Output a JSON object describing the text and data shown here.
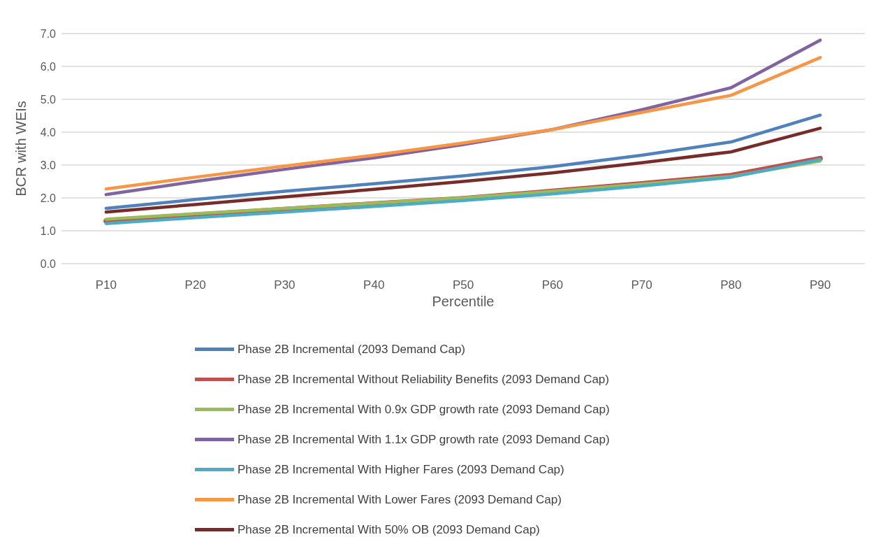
{
  "chart_data": {
    "type": "line",
    "xlabel": "Percentile",
    "ylabel": "BCR with WEIs",
    "categories": [
      "P10",
      "P20",
      "P30",
      "P40",
      "P50",
      "P60",
      "P70",
      "P80",
      "P90"
    ],
    "series": [
      {
        "name": "Phase 2B Incremental (2093 Demand Cap)",
        "color": "#4f81bd",
        "values": [
          1.68,
          1.95,
          2.2,
          2.43,
          2.67,
          2.95,
          3.3,
          3.7,
          4.52
        ]
      },
      {
        "name": "Phase 2B Incremental Without Reliability Benefits (2093 Demand Cap)",
        "color": "#c0504d",
        "values": [
          1.3,
          1.48,
          1.65,
          1.82,
          1.98,
          2.2,
          2.43,
          2.68,
          3.2
        ]
      },
      {
        "name": "Phase 2B Incremental With 0.9x GDP growth rate (2093 Demand Cap)",
        "color": "#9bbb59",
        "values": [
          1.35,
          1.52,
          1.68,
          1.84,
          2.0,
          2.2,
          2.42,
          2.65,
          3.12
        ]
      },
      {
        "name": "Phase 2B Incremental With 1.1x GDP growth rate (2093 Demand Cap)",
        "color": "#8064a2",
        "values": [
          2.1,
          2.5,
          2.87,
          3.22,
          3.62,
          4.08,
          4.68,
          5.35,
          6.8
        ]
      },
      {
        "name": "Phase 2B Incremental With Higher Fares (2093 Demand Cap)",
        "color": "#4bacc6",
        "values": [
          1.22,
          1.4,
          1.57,
          1.74,
          1.92,
          2.12,
          2.36,
          2.63,
          3.17
        ]
      },
      {
        "name": "Phase 2B Incremental With Lower Fares (2093 Demand Cap)",
        "color": "#f79646",
        "values": [
          2.27,
          2.63,
          2.97,
          3.3,
          3.67,
          4.08,
          4.6,
          5.12,
          6.27
        ]
      },
      {
        "name": "Phase 2B Incremental With 50% OB (2093 Demand Cap)",
        "color": "#772c2a",
        "values": [
          1.57,
          1.8,
          2.03,
          2.26,
          2.5,
          2.76,
          3.07,
          3.4,
          4.12
        ]
      }
    ],
    "ylim": [
      0,
      7
    ],
    "yticks": [
      {
        "value": 0,
        "label": "0.0"
      },
      {
        "value": 1,
        "label": "1.0"
      },
      {
        "value": 2,
        "label": "2.0"
      },
      {
        "value": 3,
        "label": "3.0"
      },
      {
        "value": 4,
        "label": "4.0"
      },
      {
        "value": 5,
        "label": "5.0"
      },
      {
        "value": 6,
        "label": "6.0"
      },
      {
        "value": 7,
        "label": "7.0"
      }
    ],
    "grid": "y",
    "legend": "bottom",
    "marker": "none",
    "line_style": "solid"
  }
}
